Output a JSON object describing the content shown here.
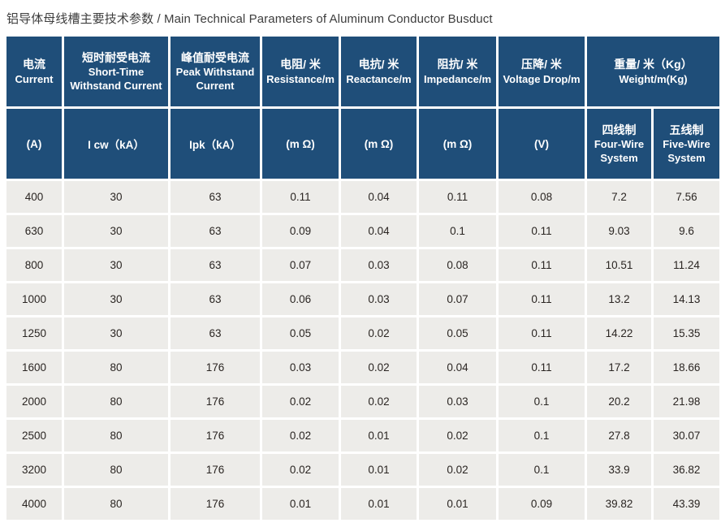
{
  "title": "铝导体母线槽主要技术参数 / Main Technical Parameters of Aluminum Conductor Busduct",
  "colors": {
    "header_bg": "#1F4E79",
    "header_text": "#FFFFFF",
    "row_bg": "#EDECE9",
    "data_text": "#2A2522",
    "title_text": "#3D3D3D",
    "grid_gap": "#FFFFFF"
  },
  "table": {
    "header_row1": [
      {
        "zh": "电流",
        "en": "Current"
      },
      {
        "zh": "短时耐受电流",
        "en": "Short-Time Withstand Current"
      },
      {
        "zh": "峰值耐受电流",
        "en": "Peak Withstand Current"
      },
      {
        "zh": "电阻/ 米",
        "en": "Resistance/m"
      },
      {
        "zh": "电抗/ 米",
        "en": "Reactance/m"
      },
      {
        "zh": "阻抗/ 米",
        "en": "Impedance/m"
      },
      {
        "zh": "压降/ 米",
        "en": "Voltage Drop/m"
      },
      {
        "zh": "重量/ 米（Kg）",
        "en": "Weight/m(Kg)"
      }
    ],
    "header_row2": [
      {
        "label": "(A)"
      },
      {
        "label": "I cw（kA）"
      },
      {
        "label": "Ipk（kA）"
      },
      {
        "label": "(m Ω)"
      },
      {
        "label": "(m Ω)"
      },
      {
        "label": "(m Ω)"
      },
      {
        "label": "(V)"
      },
      {
        "zh": "四线制",
        "en": "Four-Wire System"
      },
      {
        "zh": "五线制",
        "en": "Five-Wire System"
      }
    ],
    "rows": [
      [
        "400",
        "30",
        "63",
        "0.11",
        "0.04",
        "0.11",
        "0.08",
        "7.2",
        "7.56"
      ],
      [
        "630",
        "30",
        "63",
        "0.09",
        "0.04",
        "0.1",
        "0.11",
        "9.03",
        "9.6"
      ],
      [
        "800",
        "30",
        "63",
        "0.07",
        "0.03",
        "0.08",
        "0.11",
        "10.51",
        "11.24"
      ],
      [
        "1000",
        "30",
        "63",
        "0.06",
        "0.03",
        "0.07",
        "0.11",
        "13.2",
        "14.13"
      ],
      [
        "1250",
        "30",
        "63",
        "0.05",
        "0.02",
        "0.05",
        "0.11",
        "14.22",
        "15.35"
      ],
      [
        "1600",
        "80",
        "176",
        "0.03",
        "0.02",
        "0.04",
        "0.11",
        "17.2",
        "18.66"
      ],
      [
        "2000",
        "80",
        "176",
        "0.02",
        "0.02",
        "0.03",
        "0.1",
        "20.2",
        "21.98"
      ],
      [
        "2500",
        "80",
        "176",
        "0.02",
        "0.01",
        "0.02",
        "0.1",
        "27.8",
        "30.07"
      ],
      [
        "3200",
        "80",
        "176",
        "0.02",
        "0.01",
        "0.02",
        "0.1",
        "33.9",
        "36.82"
      ],
      [
        "4000",
        "80",
        "176",
        "0.01",
        "0.01",
        "0.01",
        "0.09",
        "39.82",
        "43.39"
      ]
    ]
  }
}
